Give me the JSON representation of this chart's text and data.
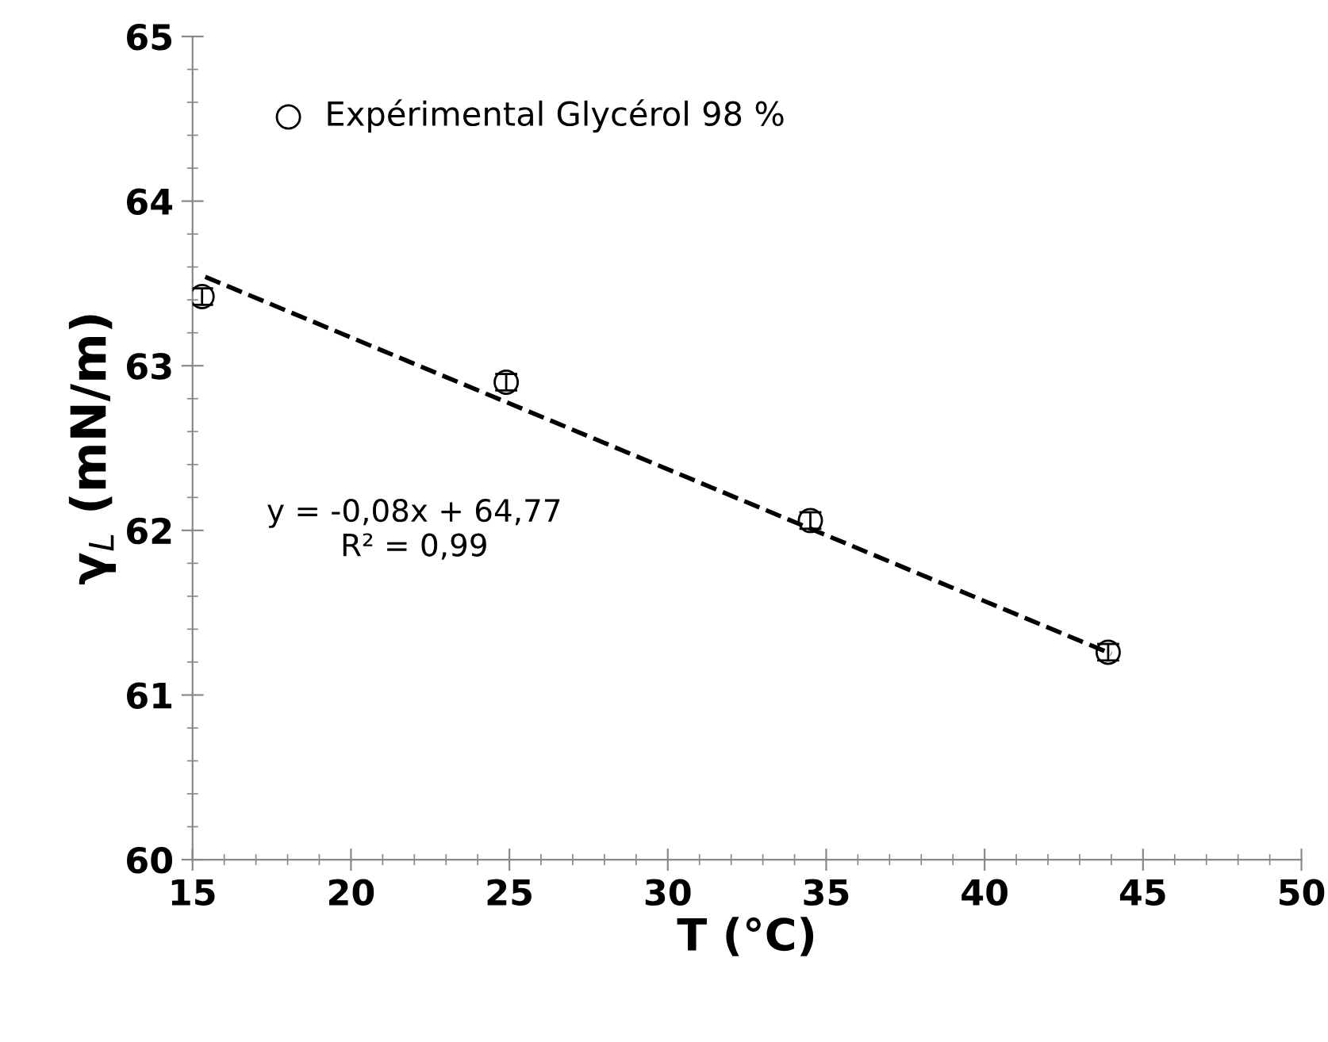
{
  "chart_data": {
    "type": "scatter",
    "xlabel": "T (°C)",
    "ylabel": "γ$_{L}$ (mN/m)",
    "xlim": [
      15,
      50
    ],
    "ylim": [
      60,
      65
    ],
    "xticks": [
      15,
      20,
      25,
      30,
      35,
      40,
      45,
      50
    ],
    "yticks": [
      60,
      61,
      62,
      63,
      64,
      65
    ],
    "grid": false,
    "legend": "top left",
    "series": [
      {
        "name": "Expérimental Glycérol 98 %",
        "marker": "circle",
        "color": "#000000",
        "x": [
          15.3,
          24.9,
          34.5,
          43.9
        ],
        "values": [
          63.42,
          62.9,
          62.06,
          61.26
        ],
        "errors": [
          0.05,
          0.05,
          0.05,
          0.05
        ]
      },
      {
        "type": "line",
        "color": "#000000",
        "line_style": "dashed",
        "x": [
          15.4,
          44
        ],
        "values": [
          63.54,
          61.25
        ]
      }
    ],
    "annotations": [
      "y = -0,08x + 64,77\nR² = 0,99"
    ]
  }
}
